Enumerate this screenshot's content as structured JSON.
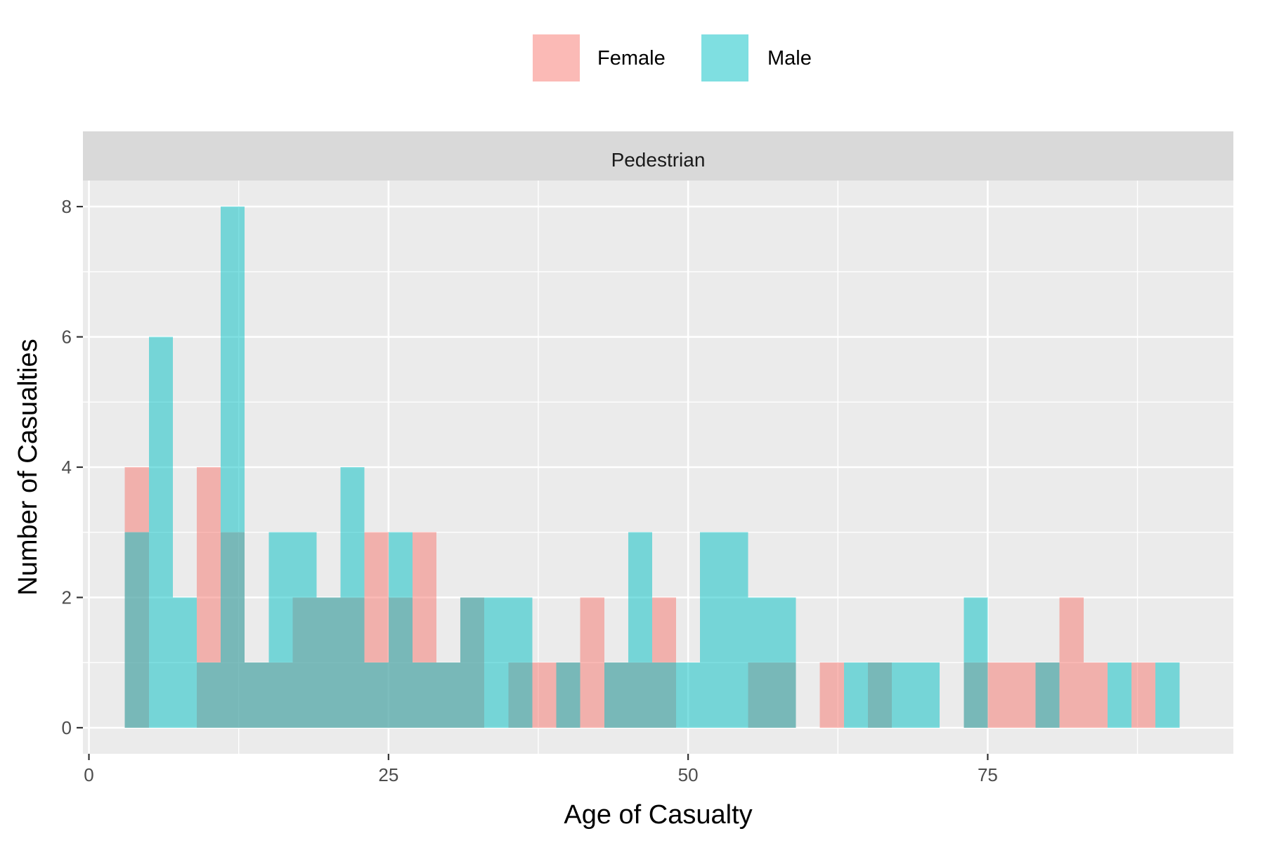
{
  "chart_data": {
    "type": "bar",
    "variant": "overlaid-histogram",
    "facet": "Pedestrian",
    "xlabel": "Age of Casualty",
    "ylabel": "Number of Casualties",
    "xlim": [
      -0.5,
      95.5
    ],
    "ylim": [
      -0.4,
      8.4
    ],
    "x_ticks": [
      0,
      25,
      50,
      75
    ],
    "y_ticks": [
      0,
      2,
      4,
      6,
      8
    ],
    "bin_width": 2,
    "legend": {
      "position": "top"
    },
    "grid": true,
    "series": [
      {
        "name": "Female",
        "color": "#F8766D",
        "bins": [
          [
            3,
            4
          ],
          [
            9,
            4
          ],
          [
            11,
            3
          ],
          [
            13,
            1
          ],
          [
            15,
            1
          ],
          [
            17,
            2
          ],
          [
            19,
            2
          ],
          [
            21,
            2
          ],
          [
            23,
            3
          ],
          [
            25,
            2
          ],
          [
            27,
            3
          ],
          [
            29,
            1
          ],
          [
            31,
            2
          ],
          [
            35,
            1
          ],
          [
            37,
            1
          ],
          [
            39,
            1
          ],
          [
            41,
            2
          ],
          [
            43,
            1
          ],
          [
            45,
            1
          ],
          [
            47,
            2
          ],
          [
            55,
            1
          ],
          [
            57,
            1
          ],
          [
            61,
            1
          ],
          [
            65,
            1
          ],
          [
            73,
            1
          ],
          [
            75,
            1
          ],
          [
            77,
            1
          ],
          [
            79,
            1
          ],
          [
            81,
            2
          ],
          [
            83,
            1
          ],
          [
            87,
            1
          ]
        ]
      },
      {
        "name": "Male",
        "color": "#00BFC4",
        "bins": [
          [
            3,
            3
          ],
          [
            5,
            6
          ],
          [
            7,
            2
          ],
          [
            9,
            1
          ],
          [
            11,
            8
          ],
          [
            13,
            1
          ],
          [
            15,
            3
          ],
          [
            17,
            3
          ],
          [
            19,
            2
          ],
          [
            21,
            4
          ],
          [
            23,
            1
          ],
          [
            25,
            3
          ],
          [
            27,
            1
          ],
          [
            29,
            1
          ],
          [
            31,
            2
          ],
          [
            33,
            2
          ],
          [
            35,
            2
          ],
          [
            39,
            1
          ],
          [
            43,
            1
          ],
          [
            45,
            3
          ],
          [
            47,
            1
          ],
          [
            49,
            1
          ],
          [
            51,
            3
          ],
          [
            53,
            3
          ],
          [
            55,
            2
          ],
          [
            57,
            2
          ],
          [
            63,
            1
          ],
          [
            65,
            1
          ],
          [
            67,
            1
          ],
          [
            69,
            1
          ],
          [
            73,
            2
          ],
          [
            79,
            1
          ],
          [
            85,
            1
          ],
          [
            89,
            1
          ]
        ]
      }
    ]
  }
}
